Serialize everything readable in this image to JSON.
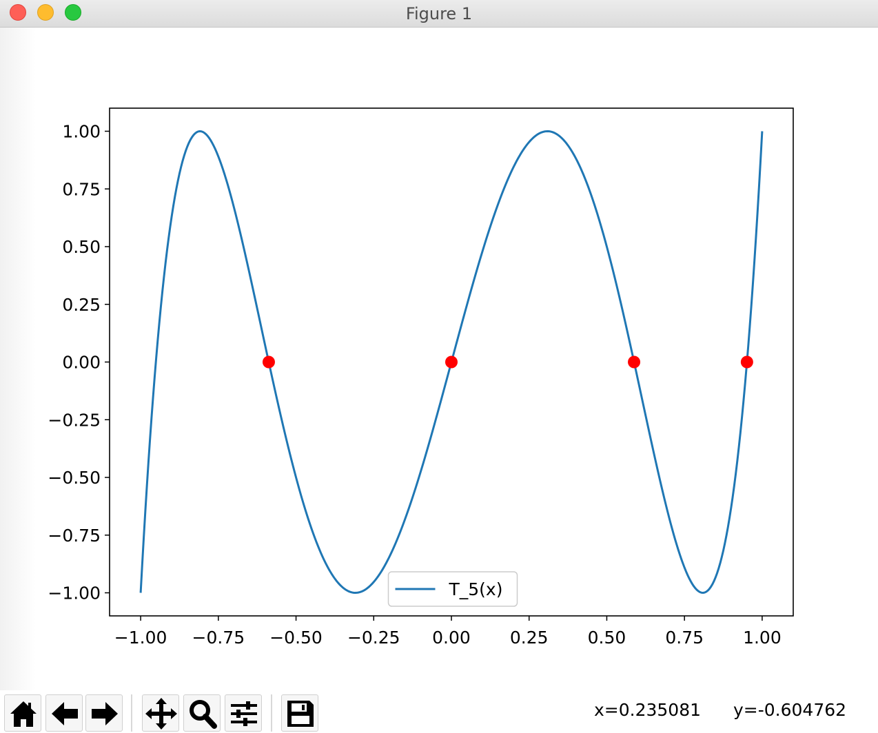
{
  "window": {
    "title": "Figure 1"
  },
  "toolbar": {
    "buttons": [
      {
        "name": "home-button",
        "icon": "home-icon"
      },
      {
        "name": "back-button",
        "icon": "arrow-left-icon"
      },
      {
        "name": "forward-button",
        "icon": "arrow-right-icon"
      },
      {
        "name": "pan-button",
        "icon": "move-icon"
      },
      {
        "name": "zoom-button",
        "icon": "magnifier-icon"
      },
      {
        "name": "configure-subplots-button",
        "icon": "sliders-icon"
      },
      {
        "name": "save-button",
        "icon": "floppy-disk-icon"
      }
    ],
    "x_readout": "x=0.235081",
    "y_readout": "y=-0.604762"
  },
  "colors": {
    "line": "#1f77b4",
    "points": "#ff0000"
  },
  "chart_data": {
    "type": "line",
    "title": "",
    "xlabel": "",
    "ylabel": "",
    "xlim": [
      -1.1,
      1.1
    ],
    "ylim": [
      -1.1,
      1.1
    ],
    "x_ticks": [
      "−1.00",
      "−0.75",
      "−0.50",
      "−0.25",
      "0.00",
      "0.25",
      "0.50",
      "0.75",
      "1.00"
    ],
    "y_ticks": [
      "1.00",
      "0.75",
      "0.50",
      "0.25",
      "0.00",
      "−0.25",
      "−0.50",
      "−0.75",
      "−1.00"
    ],
    "x_tick_values": [
      -1.0,
      -0.75,
      -0.5,
      -0.25,
      0.0,
      0.25,
      0.5,
      0.75,
      1.0
    ],
    "y_tick_values": [
      1.0,
      0.75,
      0.5,
      0.25,
      0.0,
      -0.25,
      -0.5,
      -0.75,
      -1.0
    ],
    "grid": false,
    "legend": {
      "position": "lower center",
      "entries": [
        "T_5(x)"
      ]
    },
    "series": [
      {
        "name": "T_5(x)",
        "style": "line",
        "x": [
          -1.0,
          -0.95,
          -0.9,
          -0.85,
          -0.809,
          -0.75,
          -0.7,
          -0.65,
          -0.6,
          -0.5878,
          -0.55,
          -0.5,
          -0.45,
          -0.4,
          -0.35,
          -0.309,
          -0.25,
          -0.2,
          -0.15,
          -0.1,
          -0.05,
          0.0,
          0.05,
          0.1,
          0.15,
          0.2,
          0.25,
          0.309,
          0.35,
          0.4,
          0.45,
          0.5,
          0.55,
          0.5878,
          0.6,
          0.65,
          0.7,
          0.75,
          0.809,
          0.85,
          0.9,
          0.95,
          0.9511,
          1.0
        ],
        "y": [
          -1.0,
          0.1941,
          0.8062,
          0.9912,
          1.0,
          0.9189,
          0.7235,
          0.4464,
          0.1206,
          0.0,
          -0.2169,
          -0.5,
          -0.7438,
          -0.8912,
          -0.9918,
          -1.0,
          -0.9189,
          -0.7235,
          -0.4464,
          -0.4898,
          -0.2477,
          0.0,
          0.2477,
          0.4898,
          0.7062,
          0.8672,
          0.9648,
          1.0,
          0.9918,
          0.8912,
          0.7438,
          0.5,
          0.2169,
          0.0,
          -0.0761,
          -0.4464,
          -0.7235,
          -0.9189,
          -1.0,
          -0.9912,
          -0.8062,
          -0.1941,
          0.0,
          1.0
        ]
      },
      {
        "name": "",
        "style": "points",
        "x": [
          -0.5878,
          0.0,
          0.5878,
          0.9511
        ],
        "y": [
          0.0,
          0.0,
          0.0,
          0.0
        ]
      }
    ]
  }
}
